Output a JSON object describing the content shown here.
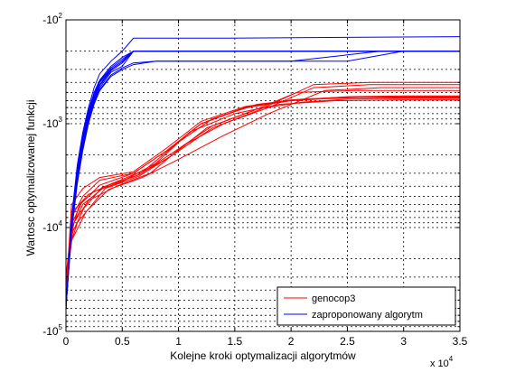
{
  "chart_data": {
    "type": "line",
    "xlabel": "Kolejne kroki optymalizacji algorytmów",
    "ylabel": "Wartosc optymalizowanej funkcji",
    "x_multiplier_label": {
      "base": "x 10",
      "exp": "4"
    },
    "xlim": [
      0,
      35000
    ],
    "ylim": [
      -100000,
      -100
    ],
    "yscale": "log-negative",
    "grid": true,
    "legend_position": "bottom-right",
    "x_ticks": [
      {
        "value": 0,
        "label": "0"
      },
      {
        "value": 5000,
        "label": "0.5"
      },
      {
        "value": 10000,
        "label": "1"
      },
      {
        "value": 15000,
        "label": "1.5"
      },
      {
        "value": 20000,
        "label": "2"
      },
      {
        "value": 25000,
        "label": "2.5"
      },
      {
        "value": 30000,
        "label": "3"
      },
      {
        "value": 35000,
        "label": "3.5"
      }
    ],
    "y_ticks": [
      {
        "value": -100,
        "base": "-10",
        "exp": "2"
      },
      {
        "value": -1000,
        "base": "-10",
        "exp": "3"
      },
      {
        "value": -10000,
        "base": "-10",
        "exp": "4"
      },
      {
        "value": -100000,
        "base": "-10",
        "exp": "5"
      }
    ],
    "series": [
      {
        "name": "genocop3",
        "color": "#ff0000",
        "runs": [
          {
            "x": [
              0,
              500,
              1500,
              3000,
              6000,
              9000,
              12000,
              16000,
              20000,
              25000,
              30000,
              35000
            ],
            "y": [
              -40000,
              -8000,
              -5000,
              -3500,
              -3000,
              -1800,
              -1000,
              -700,
              -600,
              -550,
              -540,
              -540
            ]
          },
          {
            "x": [
              0,
              400,
              1200,
              2500,
              5000,
              8000,
              11000,
              15000,
              19000,
              24000,
              30000,
              35000
            ],
            "y": [
              -60000,
              -12000,
              -6000,
              -4500,
              -3600,
              -2400,
              -1200,
              -800,
              -650,
              -600,
              -590,
              -590
            ]
          },
          {
            "x": [
              0,
              600,
              2000,
              4000,
              7000,
              10000,
              13000,
              17000,
              21000,
              26000,
              31000,
              35000
            ],
            "y": [
              -30000,
              -7000,
              -4800,
              -3800,
              -2800,
              -1500,
              -900,
              -650,
              -580,
              -560,
              -560,
              -560
            ]
          },
          {
            "x": [
              0,
              300,
              1000,
              3500,
              6500,
              9500,
              13000,
              17000,
              22000,
              27000,
              32000,
              35000
            ],
            "y": [
              -50000,
              -16000,
              -9000,
              -4200,
              -3200,
              -2000,
              -1100,
              -750,
              -420,
              -400,
              -400,
              -400
            ]
          },
          {
            "x": [
              0,
              500,
              1500,
              3000,
              6000,
              9000,
              12000,
              16000,
              20000,
              25000,
              30000,
              35000
            ],
            "y": [
              -45000,
              -6000,
              -4200,
              -3300,
              -2900,
              -1700,
              -950,
              -680,
              -600,
              -560,
              -550,
              -550
            ]
          },
          {
            "x": [
              0,
              700,
              2000,
              4500,
              7500,
              10500,
              14000,
              18000,
              22000,
              27000,
              32000,
              35000
            ],
            "y": [
              -35000,
              -9000,
              -5500,
              -4000,
              -3000,
              -1600,
              -1000,
              -700,
              -450,
              -420,
              -420,
              -420
            ]
          },
          {
            "x": [
              0,
              400,
              1800,
              3800,
              6800,
              10000,
              14000,
              18000,
              23000,
              28000,
              33000,
              35000
            ],
            "y": [
              -55000,
              -14000,
              -7000,
              -4300,
              -3300,
              -2200,
              -1300,
              -800,
              -480,
              -450,
              -450,
              -450
            ]
          },
          {
            "x": [
              0,
              500,
              1500,
              3500,
              6500,
              9500,
              13000,
              17000,
              21000,
              25000,
              30000,
              35000
            ],
            "y": [
              -40000,
              -10000,
              -6000,
              -4000,
              -3100,
              -1900,
              -1050,
              -720,
              -620,
              -580,
              -570,
              -570
            ]
          },
          {
            "x": [
              0,
              600,
              1600,
              3200,
              6200,
              9200,
              12500,
              16500,
              20500,
              25500,
              30500,
              35000
            ],
            "y": [
              -38000,
              -11000,
              -6500,
              -4100,
              -3200,
              -2100,
              -1100,
              -760,
              -500,
              -480,
              -480,
              -480
            ]
          },
          {
            "x": [
              0,
              450,
              1400,
              3000,
              6000,
              9000,
              12000,
              16000,
              20000,
              24000,
              29000,
              35000
            ],
            "y": [
              -42000,
              -9500,
              -5800,
              -3900,
              -3000,
              -1800,
              -1000,
              -690,
              -590,
              -560,
              -555,
              -555
            ]
          }
        ]
      },
      {
        "name": "zaproponowany algorytm",
        "color": "#0000ff",
        "runs": [
          {
            "x": [
              0,
              500,
              1000,
              1500,
              2000,
              2500,
              3000,
              4000,
              5000,
              6000,
              8000,
              14000,
              35000
            ],
            "y": [
              -60000,
              -8000,
              -2500,
              -1200,
              -700,
              -450,
              -330,
              -250,
              -200,
              -150,
              -150,
              -150,
              -145
            ]
          },
          {
            "x": [
              0,
              500,
              1000,
              1500,
              2000,
              2500,
              3000,
              4000,
              5000,
              6000,
              8000,
              12000,
              35000
            ],
            "y": [
              -60000,
              -9000,
              -3000,
              -1400,
              -800,
              -550,
              -400,
              -300,
              -250,
              -200,
              -200,
              -200,
              -200
            ]
          },
          {
            "x": [
              0,
              500,
              1000,
              1500,
              2000,
              2500,
              3000,
              4000,
              5000,
              6000,
              8000,
              12000,
              35000
            ],
            "y": [
              -60000,
              -10000,
              -3500,
              -1600,
              -900,
              -600,
              -450,
              -320,
              -280,
              -200,
              -200,
              -200,
              -200
            ]
          },
          {
            "x": [
              0,
              500,
              1000,
              1500,
              2000,
              2500,
              3000,
              4000,
              5000,
              6000,
              9000,
              12000,
              35000
            ],
            "y": [
              -60000,
              -9500,
              -3200,
              -1500,
              -850,
              -580,
              -430,
              -310,
              -260,
              -200,
              -200,
              -200,
              -200
            ]
          },
          {
            "x": [
              0,
              500,
              1000,
              1500,
              2000,
              2500,
              3000,
              4000,
              5000,
              6000,
              8000,
              20000,
              28000,
              35000
            ],
            "y": [
              -60000,
              -11000,
              -3800,
              -1800,
              -1000,
              -650,
              -480,
              -350,
              -300,
              -270,
              -250,
              -250,
              -200,
              -200
            ]
          },
          {
            "x": [
              0,
              500,
              1000,
              1500,
              2000,
              2500,
              3000,
              4000,
              5000,
              6000,
              8000,
              12000,
              35000
            ],
            "y": [
              -60000,
              -8500,
              -2800,
              -1300,
              -750,
              -500,
              -380,
              -280,
              -230,
              -200,
              -200,
              -200,
              -200
            ]
          },
          {
            "x": [
              0,
              500,
              1000,
              1500,
              2000,
              2500,
              3000,
              4000,
              5000,
              6000,
              8000,
              25000,
              30000,
              35000
            ],
            "y": [
              -60000,
              -10500,
              -3600,
              -1700,
              -950,
              -620,
              -470,
              -340,
              -290,
              -260,
              -250,
              -250,
              -200,
              -200
            ]
          },
          {
            "x": [
              0,
              500,
              1000,
              1500,
              2000,
              2500,
              3000,
              4000,
              5000,
              6000,
              8000,
              12000,
              35000
            ],
            "y": [
              -60000,
              -9200,
              -3100,
              -1450,
              -820,
              -560,
              -420,
              -300,
              -250,
              -200,
              -200,
              -200,
              -200
            ]
          },
          {
            "x": [
              0,
              500,
              1000,
              1500,
              2000,
              2500,
              3000,
              4000,
              5000,
              6000,
              8000,
              12000,
              35000
            ],
            "y": [
              -60000,
              -8800,
              -2900,
              -1350,
              -780,
              -520,
              -390,
              -290,
              -240,
              -200,
              -200,
              -200,
              -200
            ]
          }
        ]
      }
    ]
  }
}
